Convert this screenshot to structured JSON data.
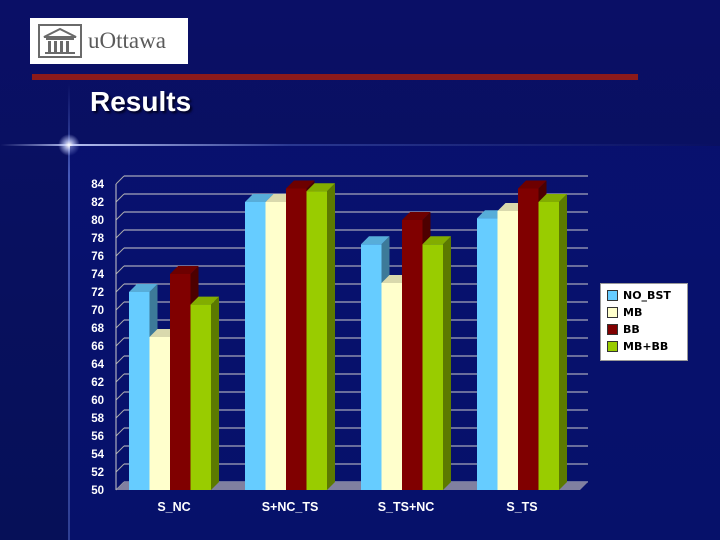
{
  "header": {
    "logo_text": "uOttawa",
    "title": "Results"
  },
  "colors": {
    "accent_rule": "#8c1a1a",
    "background": "#0a0f66"
  },
  "chart_data": {
    "type": "bar",
    "categories": [
      "S_NC",
      "S+NC_TS",
      "S_TS+NC",
      "S_TS"
    ],
    "series": [
      {
        "name": "NO_BST",
        "color": "#66ccff",
        "values": [
          72,
          82,
          77.3,
          80.2
        ]
      },
      {
        "name": "MB",
        "color": "#ffffcc",
        "values": [
          67,
          82,
          73,
          81
        ]
      },
      {
        "name": "BB",
        "color": "#800000",
        "values": [
          74,
          83.5,
          80,
          83.5
        ]
      },
      {
        "name": "MB+BB",
        "color": "#99cc00",
        "values": [
          70.6,
          83.2,
          77.3,
          82
        ]
      }
    ],
    "ylim": [
      50,
      84
    ],
    "yticks": [
      50,
      52,
      54,
      56,
      58,
      60,
      62,
      64,
      66,
      68,
      70,
      72,
      74,
      76,
      78,
      80,
      82,
      84
    ],
    "grid": true,
    "legend_position": "right"
  }
}
